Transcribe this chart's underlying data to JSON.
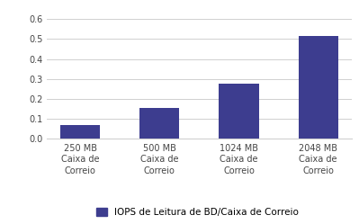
{
  "categories": [
    "250 MB\nCaixa de\nCorreio",
    "500 MB\nCaixa de\nCorreio",
    "1024 MB\nCaixa de\nCorreio",
    "2048 MB\nCaixa de\nCorreio"
  ],
  "values": [
    0.07,
    0.155,
    0.278,
    0.515
  ],
  "bar_color": "#3D3D8F",
  "ylim": [
    0,
    0.65
  ],
  "yticks": [
    0.0,
    0.1,
    0.2,
    0.3,
    0.4,
    0.5,
    0.6
  ],
  "legend_label": "IOPS de Leitura de BD/Caixa de Correio",
  "background_color": "#ffffff",
  "grid_color": "#d0d0d0",
  "bar_width": 0.5
}
